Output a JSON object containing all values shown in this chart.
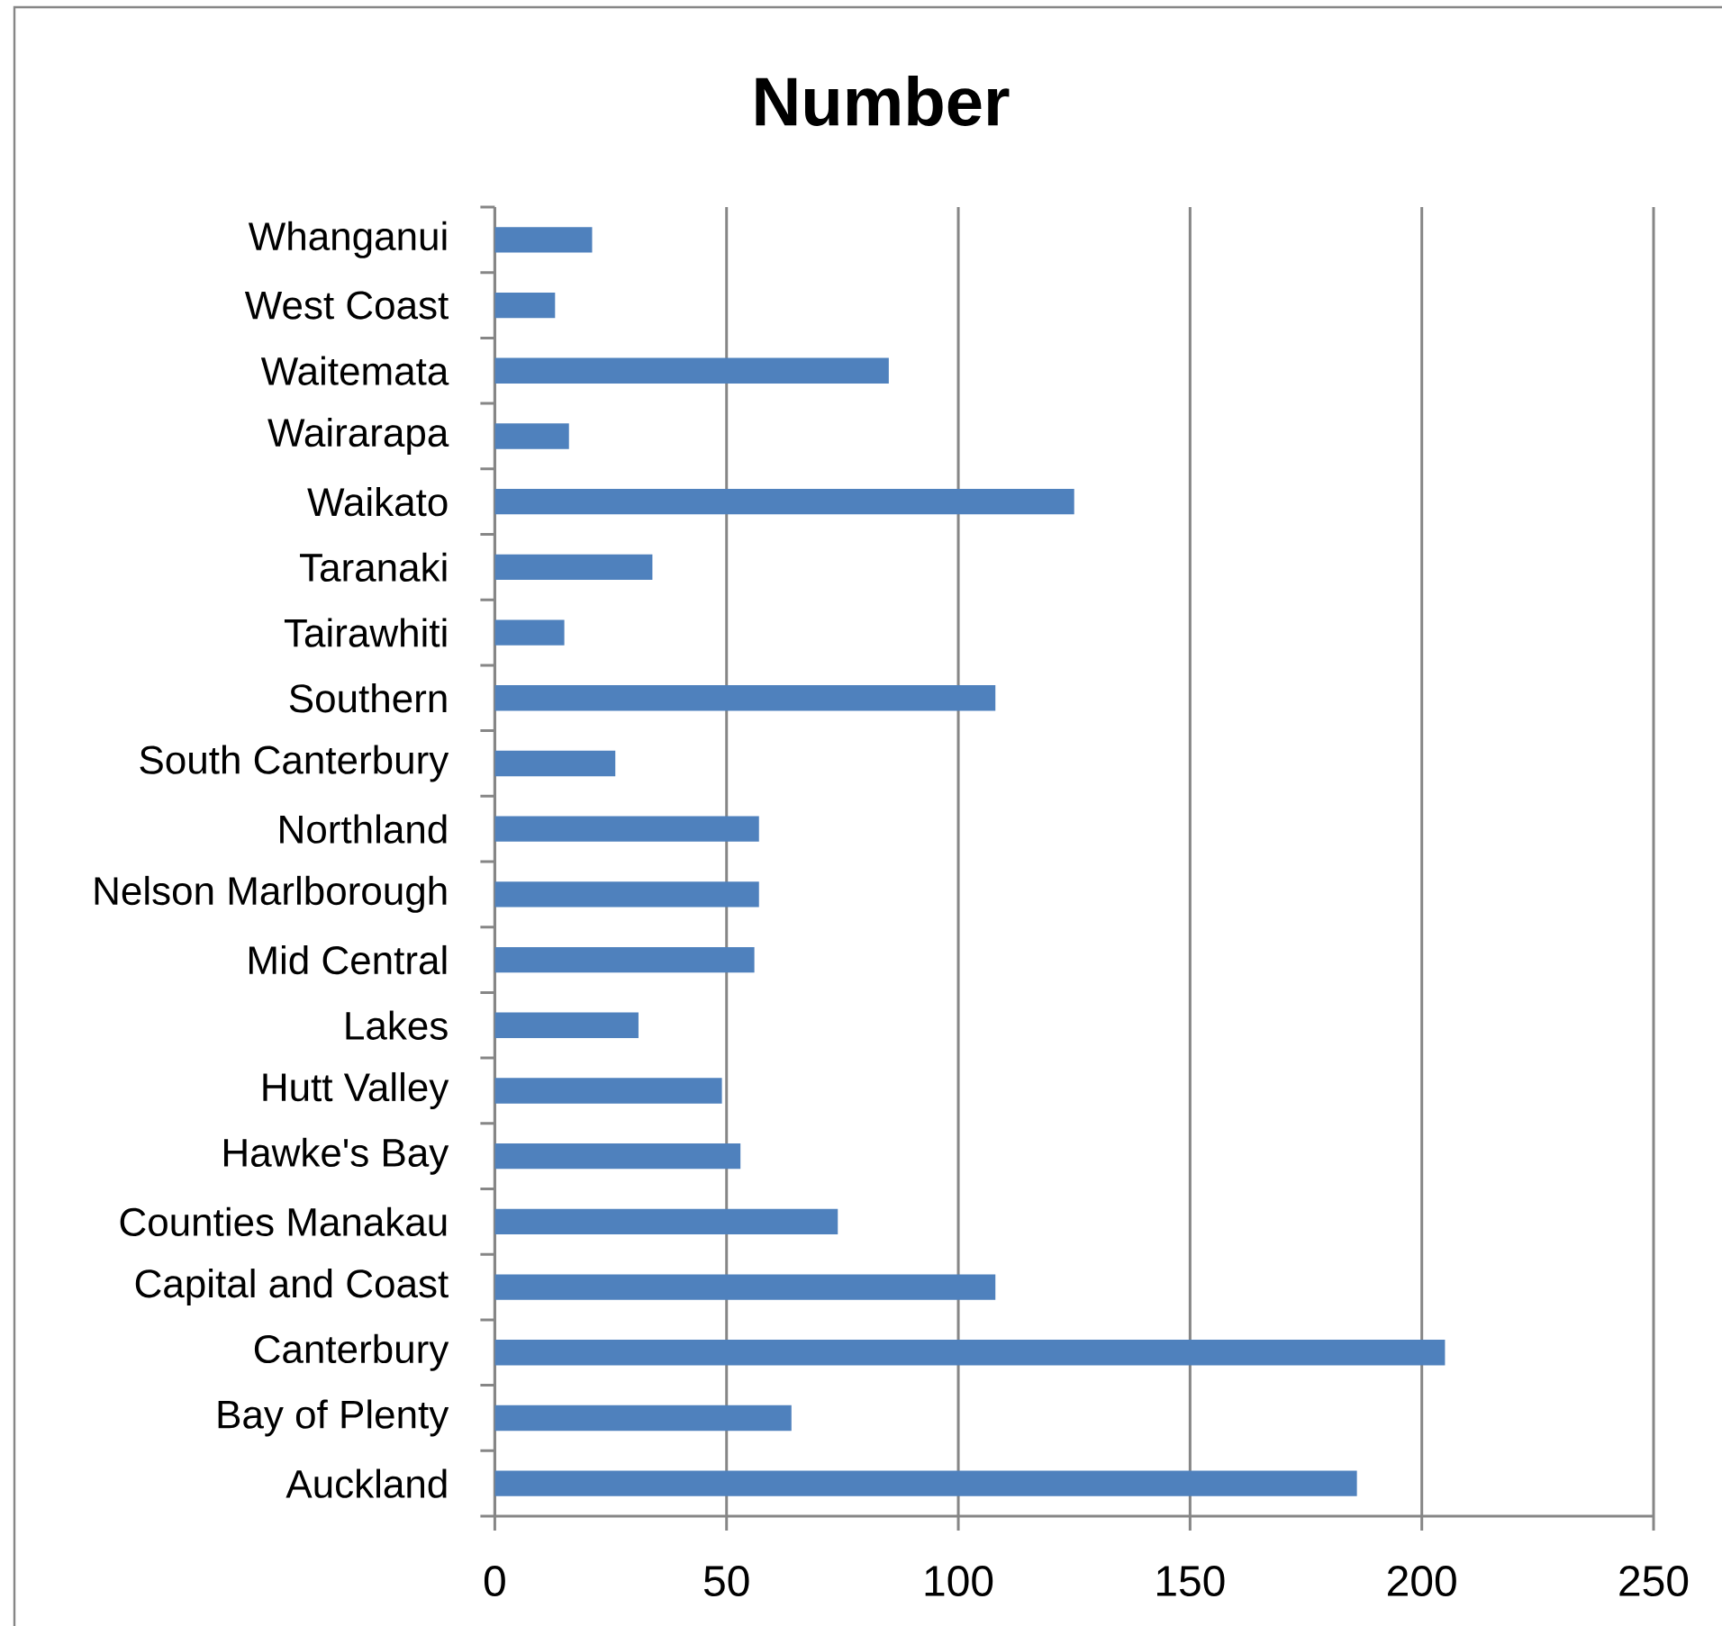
{
  "chart_data": {
    "type": "bar",
    "orientation": "horizontal",
    "title": "Number",
    "categories": [
      "Whanganui",
      "West Coast",
      "Waitemata",
      "Wairarapa",
      "Waikato",
      "Taranaki",
      "Tairawhiti",
      "Southern",
      "South Canterbury",
      "Northland",
      "Nelson Marlborough",
      "Mid Central",
      "Lakes",
      "Hutt Valley",
      "Hawke's Bay",
      "Counties Manakau",
      "Capital and Coast",
      "Canterbury",
      "Bay of Plenty",
      "Auckland"
    ],
    "values": [
      21,
      13,
      85,
      16,
      125,
      34,
      15,
      108,
      26,
      57,
      57,
      56,
      31,
      49,
      53,
      74,
      108,
      205,
      64,
      186
    ],
    "color": "#4f81bd",
    "xlim": [
      0,
      250
    ],
    "xticks": [
      0,
      50,
      100,
      150,
      200,
      250
    ],
    "grid": "x"
  }
}
